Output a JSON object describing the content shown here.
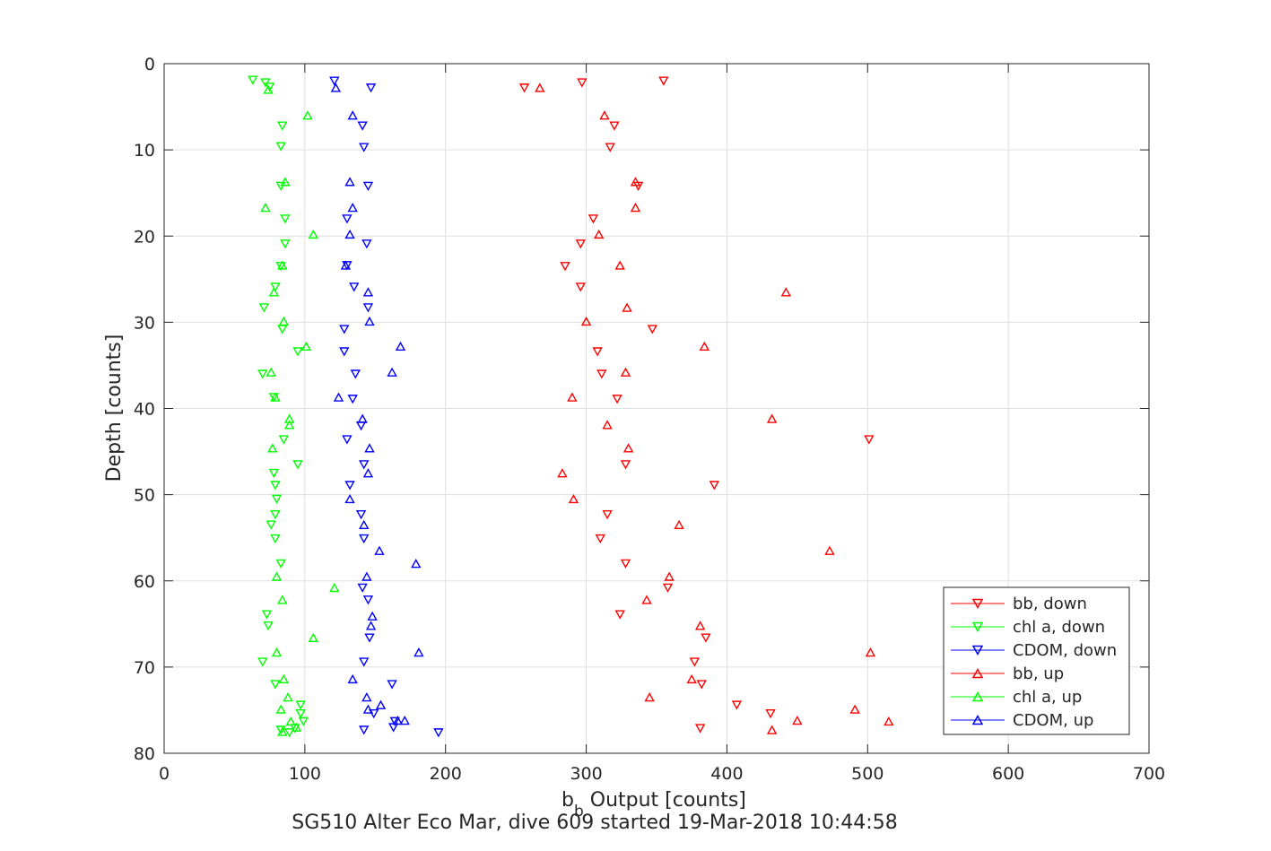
{
  "chart_data": {
    "type": "scatter",
    "xlabel_main": "b",
    "xlabel_sub": "b",
    "xlabel_rest": " Output [counts]",
    "ylabel": "Depth [counts]",
    "caption": "SG510 Alter Eco Mar, dive 609 started 19-Mar-2018 10:44:58",
    "xlim": [
      0,
      700
    ],
    "ylim": [
      0,
      80
    ],
    "y_reversed": true,
    "grid": true,
    "legend_position": "bottom-right",
    "xticks": [
      "0",
      "100",
      "200",
      "300",
      "400",
      "500",
      "600",
      "700"
    ],
    "yticks": [
      "0",
      "10",
      "20",
      "30",
      "40",
      "50",
      "60",
      "70",
      "80"
    ],
    "series": [
      {
        "name": "bb, down",
        "color": "#ff0000",
        "marker": "triangle-down",
        "points": [
          [
            355,
            2.0
          ],
          [
            297,
            2.2
          ],
          [
            256,
            2.8
          ],
          [
            320,
            7.2
          ],
          [
            317,
            9.7
          ],
          [
            337,
            14.2
          ],
          [
            305,
            18.0
          ],
          [
            296,
            20.9
          ],
          [
            285,
            23.5
          ],
          [
            296,
            25.9
          ],
          [
            347,
            30.8
          ],
          [
            308,
            33.4
          ],
          [
            311,
            36.0
          ],
          [
            322,
            38.9
          ],
          [
            501,
            43.6
          ],
          [
            328,
            46.5
          ],
          [
            391,
            48.9
          ],
          [
            315,
            52.3
          ],
          [
            310,
            55.1
          ],
          [
            328,
            58.0
          ],
          [
            358,
            60.8
          ],
          [
            324,
            63.9
          ],
          [
            385,
            66.6
          ],
          [
            377,
            69.4
          ],
          [
            382,
            72.0
          ],
          [
            407,
            74.4
          ],
          [
            431,
            75.4
          ],
          [
            381,
            77.1
          ]
        ]
      },
      {
        "name": "chl a, down",
        "color": "#00ff00",
        "marker": "triangle-down",
        "points": [
          [
            63,
            1.9
          ],
          [
            72,
            2.2
          ],
          [
            75,
            2.7
          ],
          [
            84,
            7.2
          ],
          [
            83,
            9.6
          ],
          [
            83,
            14.2
          ],
          [
            86,
            18.0
          ],
          [
            86,
            20.9
          ],
          [
            83,
            23.5
          ],
          [
            79,
            25.9
          ],
          [
            71,
            28.3
          ],
          [
            84,
            30.8
          ],
          [
            95,
            33.4
          ],
          [
            70,
            36.0
          ],
          [
            78,
            38.7
          ],
          [
            85,
            43.6
          ],
          [
            95,
            46.5
          ],
          [
            78,
            47.5
          ],
          [
            79,
            48.9
          ],
          [
            80,
            50.5
          ],
          [
            79,
            52.3
          ],
          [
            76,
            53.5
          ],
          [
            79,
            55.1
          ],
          [
            83,
            58.0
          ],
          [
            73,
            63.9
          ],
          [
            74,
            65.2
          ],
          [
            70,
            69.4
          ],
          [
            79,
            72.0
          ],
          [
            97,
            74.4
          ],
          [
            97,
            75.4
          ],
          [
            99,
            76.3
          ],
          [
            93,
            77.1
          ],
          [
            83,
            77.3
          ],
          [
            89,
            77.6
          ]
        ]
      },
      {
        "name": "CDOM, down",
        "color": "#0000ff",
        "marker": "triangle-down",
        "points": [
          [
            121,
            2.0
          ],
          [
            147,
            2.8
          ],
          [
            141,
            7.2
          ],
          [
            142,
            9.7
          ],
          [
            145,
            14.2
          ],
          [
            130,
            18.0
          ],
          [
            144,
            20.9
          ],
          [
            130,
            23.4
          ],
          [
            135,
            25.9
          ],
          [
            145,
            28.3
          ],
          [
            128,
            30.8
          ],
          [
            128,
            33.4
          ],
          [
            136,
            36.0
          ],
          [
            134,
            38.9
          ],
          [
            140,
            42.0
          ],
          [
            130,
            43.6
          ],
          [
            142,
            46.5
          ],
          [
            132,
            48.9
          ],
          [
            140,
            52.3
          ],
          [
            142,
            55.1
          ],
          [
            141,
            60.8
          ],
          [
            145,
            62.2
          ],
          [
            146,
            66.6
          ],
          [
            142,
            69.4
          ],
          [
            162,
            72.0
          ],
          [
            149,
            75.4
          ],
          [
            164,
            76.3
          ],
          [
            163,
            77.0
          ],
          [
            142,
            77.3
          ],
          [
            195,
            77.6
          ]
        ]
      },
      {
        "name": "bb, up",
        "color": "#ff0000",
        "marker": "triangle-up",
        "points": [
          [
            267,
            2.8
          ],
          [
            313,
            6.0
          ],
          [
            335,
            13.7
          ],
          [
            335,
            16.7
          ],
          [
            309,
            19.8
          ],
          [
            324,
            23.4
          ],
          [
            442,
            26.5
          ],
          [
            329,
            28.3
          ],
          [
            300,
            29.9
          ],
          [
            384,
            32.8
          ],
          [
            328,
            35.8
          ],
          [
            290,
            38.7
          ],
          [
            432,
            41.2
          ],
          [
            315,
            41.9
          ],
          [
            330,
            44.6
          ],
          [
            283,
            47.5
          ],
          [
            291,
            50.5
          ],
          [
            366,
            53.5
          ],
          [
            473,
            56.5
          ],
          [
            359,
            59.5
          ],
          [
            343,
            62.2
          ],
          [
            381,
            65.2
          ],
          [
            502,
            68.3
          ],
          [
            375,
            71.4
          ],
          [
            345,
            73.5
          ],
          [
            491,
            74.9
          ],
          [
            450,
            76.2
          ],
          [
            515,
            76.3
          ],
          [
            432,
            77.3
          ]
        ]
      },
      {
        "name": "chl a, up",
        "color": "#00ff00",
        "marker": "triangle-up",
        "points": [
          [
            74,
            3.0
          ],
          [
            102,
            6.0
          ],
          [
            86,
            13.7
          ],
          [
            72,
            16.7
          ],
          [
            106,
            19.8
          ],
          [
            84,
            23.4
          ],
          [
            78,
            26.5
          ],
          [
            85,
            29.9
          ],
          [
            101,
            32.8
          ],
          [
            76,
            35.8
          ],
          [
            79,
            38.7
          ],
          [
            89,
            41.2
          ],
          [
            89,
            41.9
          ],
          [
            77,
            44.6
          ],
          [
            84,
            62.2
          ],
          [
            106,
            66.6
          ],
          [
            80,
            68.3
          ],
          [
            85,
            71.4
          ],
          [
            88,
            73.5
          ],
          [
            83,
            74.9
          ],
          [
            90,
            76.3
          ],
          [
            121,
            60.8
          ],
          [
            80,
            59.5
          ],
          [
            94,
            77.0
          ],
          [
            84,
            77.5
          ]
        ]
      },
      {
        "name": "CDOM, up",
        "color": "#0000ff",
        "marker": "triangle-up",
        "points": [
          [
            122,
            2.8
          ],
          [
            134,
            6.0
          ],
          [
            132,
            13.7
          ],
          [
            134,
            16.7
          ],
          [
            132,
            19.8
          ],
          [
            129,
            23.4
          ],
          [
            145,
            26.5
          ],
          [
            146,
            29.9
          ],
          [
            168,
            32.8
          ],
          [
            162,
            35.8
          ],
          [
            124,
            38.7
          ],
          [
            141,
            41.2
          ],
          [
            146,
            44.6
          ],
          [
            145,
            47.5
          ],
          [
            132,
            50.5
          ],
          [
            142,
            53.5
          ],
          [
            153,
            56.5
          ],
          [
            179,
            58.0
          ],
          [
            144,
            59.5
          ],
          [
            148,
            64.1
          ],
          [
            147,
            65.2
          ],
          [
            181,
            68.3
          ],
          [
            134,
            71.4
          ],
          [
            144,
            73.5
          ],
          [
            154,
            74.4
          ],
          [
            145,
            74.9
          ],
          [
            171,
            76.2
          ],
          [
            166,
            76.2
          ]
        ]
      }
    ]
  },
  "colors": {
    "axis": "#262626",
    "grid": "#dfdfdf",
    "background": "#ffffff"
  }
}
